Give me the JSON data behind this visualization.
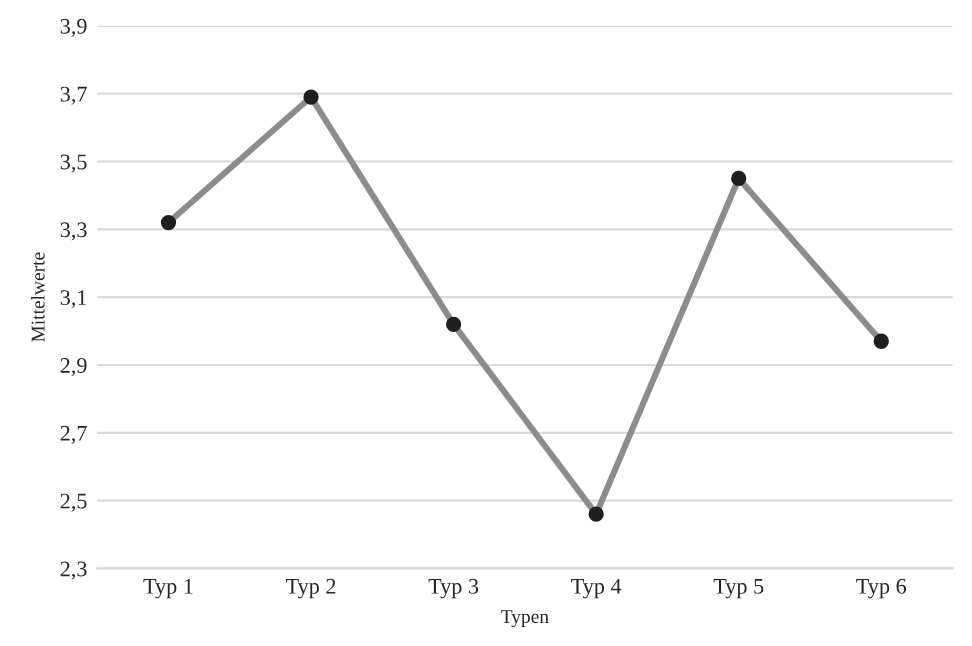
{
  "chart_data": {
    "type": "line",
    "xlabel": "Typen",
    "ylabel": "Mittelwerte",
    "categories": [
      "Typ 1",
      "Typ 2",
      "Typ 3",
      "Typ 4",
      "Typ 5",
      "Typ 6"
    ],
    "series": [
      {
        "color": "#8c8c8c",
        "values": [
          3.32,
          3.69,
          3.02,
          2.46,
          3.45,
          2.97
        ]
      }
    ],
    "ylim": [
      2.3,
      3.9
    ],
    "yticks": [
      {
        "value": 2.3,
        "label": "2,3"
      },
      {
        "value": 2.5,
        "label": "2,5"
      },
      {
        "value": 2.7,
        "label": "2,7"
      },
      {
        "value": 2.9,
        "label": "2,9"
      },
      {
        "value": 3.1,
        "label": "3,1"
      },
      {
        "value": 3.3,
        "label": "3,3"
      },
      {
        "value": 3.5,
        "label": "3,5"
      },
      {
        "value": 3.7,
        "label": "3,7"
      },
      {
        "value": 3.9,
        "label": "3,9"
      }
    ],
    "grid": "y",
    "marker": "circle",
    "legend": false
  }
}
